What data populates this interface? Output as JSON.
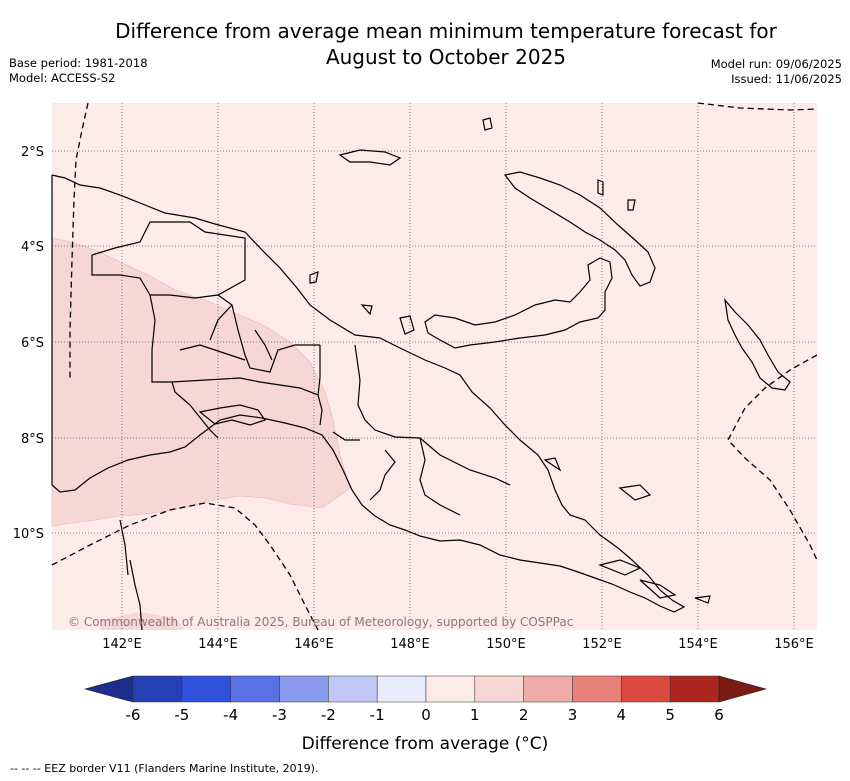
{
  "title_line1": "Difference from average mean minimum temperature forecast for",
  "title_line2": "August to October 2025",
  "base_period": "Base period: 1981-2018",
  "model": "Model: ACCESS-S2",
  "model_run": "Model run: 09/06/2025",
  "issued": "Issued: 11/06/2025",
  "lat_labels": [
    "2°S",
    "4°S",
    "6°S",
    "8°S",
    "10°S"
  ],
  "lon_labels": [
    "142°E",
    "144°E",
    "146°E",
    "148°E",
    "150°E",
    "152°E",
    "154°E",
    "156°E"
  ],
  "copyright": "© Commonwealth of Australia 2025, Bureau of Meteorology, supported by COSPPac",
  "colorbar": {
    "ticks": [
      "-6",
      "-5",
      "-4",
      "-3",
      "-2",
      "-1",
      "0",
      "1",
      "2",
      "3",
      "4",
      "5",
      "6"
    ],
    "label": "Difference from average (°C)",
    "colors": [
      "#1c2d8c",
      "#253fb5",
      "#2f4fdd",
      "#5a72e6",
      "#8899ee",
      "#c1c8f5",
      "#e8ebfb",
      "#fcebe9",
      "#f6d7d3",
      "#efaba5",
      "#e68078",
      "#dc4a3f",
      "#ad261f",
      "#7a1c14"
    ]
  },
  "legend_footer": "-- -- -- EEZ border V11 (Flanders Marine Institute, 2019).",
  "map_colors": {
    "background": "#fcebe9",
    "warmer": "#f6d7d3"
  }
}
